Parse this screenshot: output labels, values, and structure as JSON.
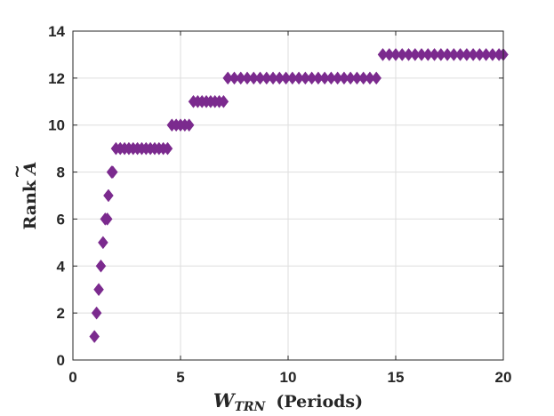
{
  "chart_data": {
    "type": "scatter",
    "title": "",
    "xlabel": {
      "main": "W",
      "sub": "TRN",
      "suffix": "(Periods)"
    },
    "ylabel": {
      "prefix": "Rank ",
      "symbol": "A",
      "accent": "~"
    },
    "xlim": [
      0,
      20
    ],
    "ylim": [
      0,
      14
    ],
    "xticks": [
      "0",
      "5",
      "10",
      "15",
      "20"
    ],
    "yticks": [
      "0",
      "2",
      "4",
      "6",
      "8",
      "10",
      "12",
      "14"
    ],
    "grid": true,
    "marker": "diamond",
    "color": "#7B2A8E",
    "series": [
      {
        "values": [
          {
            "x": 1.0,
            "y": 1
          },
          {
            "x": 1.1,
            "y": 2
          },
          {
            "x": 1.2,
            "y": 3
          },
          {
            "x": 1.3,
            "y": 4
          },
          {
            "x": 1.4,
            "y": 5
          },
          {
            "x": 1.5,
            "y": 6
          },
          {
            "x": 1.6,
            "y": 6
          },
          {
            "x": 1.65,
            "y": 7
          },
          {
            "x": 1.8,
            "y": 8
          },
          {
            "x": 1.85,
            "y": 8
          },
          {
            "x": 2.0,
            "y": 9
          },
          {
            "x": 2.2,
            "y": 9
          },
          {
            "x": 2.4,
            "y": 9
          },
          {
            "x": 2.6,
            "y": 9
          },
          {
            "x": 2.8,
            "y": 9
          },
          {
            "x": 3.0,
            "y": 9
          },
          {
            "x": 3.2,
            "y": 9
          },
          {
            "x": 3.4,
            "y": 9
          },
          {
            "x": 3.6,
            "y": 9
          },
          {
            "x": 3.8,
            "y": 9
          },
          {
            "x": 4.0,
            "y": 9
          },
          {
            "x": 4.2,
            "y": 9
          },
          {
            "x": 4.4,
            "y": 9
          },
          {
            "x": 4.6,
            "y": 10
          },
          {
            "x": 4.8,
            "y": 10
          },
          {
            "x": 5.0,
            "y": 10
          },
          {
            "x": 5.2,
            "y": 10
          },
          {
            "x": 5.4,
            "y": 10
          },
          {
            "x": 5.6,
            "y": 11
          },
          {
            "x": 5.8,
            "y": 11
          },
          {
            "x": 6.0,
            "y": 11
          },
          {
            "x": 6.2,
            "y": 11
          },
          {
            "x": 6.4,
            "y": 11
          },
          {
            "x": 6.6,
            "y": 11
          },
          {
            "x": 6.8,
            "y": 11
          },
          {
            "x": 7.0,
            "y": 11
          },
          {
            "x": 7.2,
            "y": 12
          },
          {
            "x": 7.5,
            "y": 12
          },
          {
            "x": 7.8,
            "y": 12
          },
          {
            "x": 8.1,
            "y": 12
          },
          {
            "x": 8.4,
            "y": 12
          },
          {
            "x": 8.7,
            "y": 12
          },
          {
            "x": 9.0,
            "y": 12
          },
          {
            "x": 9.3,
            "y": 12
          },
          {
            "x": 9.6,
            "y": 12
          },
          {
            "x": 9.9,
            "y": 12
          },
          {
            "x": 10.2,
            "y": 12
          },
          {
            "x": 10.5,
            "y": 12
          },
          {
            "x": 10.8,
            "y": 12
          },
          {
            "x": 11.1,
            "y": 12
          },
          {
            "x": 11.4,
            "y": 12
          },
          {
            "x": 11.7,
            "y": 12
          },
          {
            "x": 12.0,
            "y": 12
          },
          {
            "x": 12.3,
            "y": 12
          },
          {
            "x": 12.6,
            "y": 12
          },
          {
            "x": 12.9,
            "y": 12
          },
          {
            "x": 13.2,
            "y": 12
          },
          {
            "x": 13.5,
            "y": 12
          },
          {
            "x": 13.8,
            "y": 12
          },
          {
            "x": 14.1,
            "y": 12
          },
          {
            "x": 14.4,
            "y": 13
          },
          {
            "x": 14.7,
            "y": 13
          },
          {
            "x": 15.0,
            "y": 13
          },
          {
            "x": 15.3,
            "y": 13
          },
          {
            "x": 15.6,
            "y": 13
          },
          {
            "x": 15.9,
            "y": 13
          },
          {
            "x": 16.2,
            "y": 13
          },
          {
            "x": 16.5,
            "y": 13
          },
          {
            "x": 16.8,
            "y": 13
          },
          {
            "x": 17.1,
            "y": 13
          },
          {
            "x": 17.4,
            "y": 13
          },
          {
            "x": 17.7,
            "y": 13
          },
          {
            "x": 18.0,
            "y": 13
          },
          {
            "x": 18.3,
            "y": 13
          },
          {
            "x": 18.6,
            "y": 13
          },
          {
            "x": 18.9,
            "y": 13
          },
          {
            "x": 19.2,
            "y": 13
          },
          {
            "x": 19.5,
            "y": 13
          },
          {
            "x": 19.8,
            "y": 13
          },
          {
            "x": 20.0,
            "y": 13
          }
        ]
      }
    ]
  }
}
